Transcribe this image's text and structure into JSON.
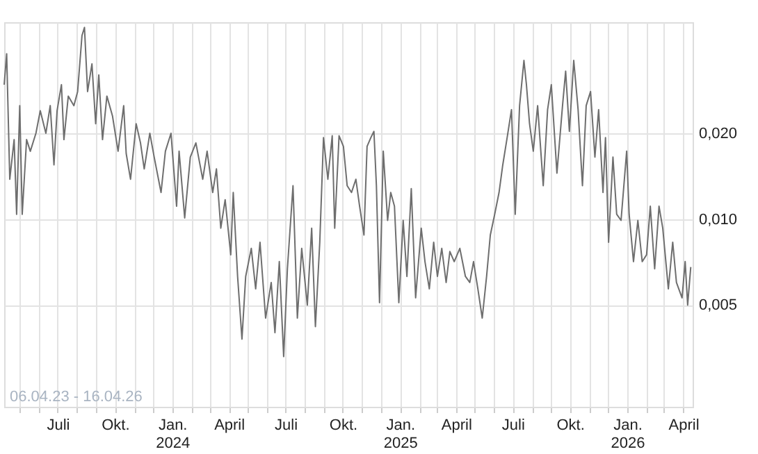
{
  "chart_data": {
    "type": "line",
    "log": "y",
    "grid": true,
    "marker": "none",
    "line_style": "solid",
    "annotations": [
      "06.04.23 - 16.04.26"
    ],
    "xlim": [
      "2023-04-06",
      "2026-04-16"
    ],
    "ylim": [
      0.0022,
      0.049
    ],
    "yticks": [
      {
        "value": 0.005,
        "label": "0,005"
      },
      {
        "value": 0.01,
        "label": "0,010"
      },
      {
        "value": 0.02,
        "label": "0,020"
      }
    ],
    "xticks": [
      {
        "value": "2023-05-01",
        "label": null
      },
      {
        "value": "2023-06-01",
        "label": null
      },
      {
        "value": "2023-07-01",
        "label": "Juli"
      },
      {
        "value": "2023-08-01",
        "label": null
      },
      {
        "value": "2023-09-01",
        "label": null
      },
      {
        "value": "2023-10-01",
        "label": "Okt."
      },
      {
        "value": "2023-11-01",
        "label": null
      },
      {
        "value": "2023-12-01",
        "label": null
      },
      {
        "value": "2024-01-01",
        "label": "Jan.\n2024"
      },
      {
        "value": "2024-02-01",
        "label": null
      },
      {
        "value": "2024-03-01",
        "label": null
      },
      {
        "value": "2024-04-01",
        "label": "April"
      },
      {
        "value": "2024-05-01",
        "label": null
      },
      {
        "value": "2024-06-01",
        "label": null
      },
      {
        "value": "2024-07-01",
        "label": "Juli"
      },
      {
        "value": "2024-08-01",
        "label": null
      },
      {
        "value": "2024-09-01",
        "label": null
      },
      {
        "value": "2024-10-01",
        "label": "Okt."
      },
      {
        "value": "2024-11-01",
        "label": null
      },
      {
        "value": "2024-12-01",
        "label": null
      },
      {
        "value": "2025-01-01",
        "label": "Jan.\n2025"
      },
      {
        "value": "2025-02-01",
        "label": null
      },
      {
        "value": "2025-03-01",
        "label": null
      },
      {
        "value": "2025-04-01",
        "label": "April"
      },
      {
        "value": "2025-05-01",
        "label": null
      },
      {
        "value": "2025-06-01",
        "label": null
      },
      {
        "value": "2025-07-01",
        "label": "Juli"
      },
      {
        "value": "2025-08-01",
        "label": null
      },
      {
        "value": "2025-09-01",
        "label": null
      },
      {
        "value": "2025-10-01",
        "label": "Okt."
      },
      {
        "value": "2025-11-01",
        "label": null
      },
      {
        "value": "2025-12-01",
        "label": null
      },
      {
        "value": "2026-01-01",
        "label": "Jan.\n2026"
      },
      {
        "value": "2026-02-01",
        "label": null
      },
      {
        "value": "2026-03-01",
        "label": null
      },
      {
        "value": "2026-04-01",
        "label": "April"
      }
    ],
    "series": [
      {
        "color": "#6e6e6e",
        "x": [
          "2023-04-06",
          "2023-04-10",
          "2023-04-15",
          "2023-04-22",
          "2023-04-26",
          "2023-05-01",
          "2023-05-05",
          "2023-05-12",
          "2023-05-18",
          "2023-05-27",
          "2023-06-03",
          "2023-06-12",
          "2023-06-19",
          "2023-06-25",
          "2023-06-30",
          "2023-07-07",
          "2023-07-11",
          "2023-07-18",
          "2023-07-27",
          "2023-08-02",
          "2023-08-09",
          "2023-08-13",
          "2023-08-18",
          "2023-08-25",
          "2023-08-31",
          "2023-09-05",
          "2023-09-11",
          "2023-09-18",
          "2023-09-27",
          "2023-10-06",
          "2023-10-15",
          "2023-10-19",
          "2023-10-26",
          "2023-11-04",
          "2023-11-11",
          "2023-11-17",
          "2023-11-26",
          "2023-12-03",
          "2023-12-14",
          "2023-12-21",
          "2023-12-30",
          "2024-01-08",
          "2024-01-12",
          "2024-01-21",
          "2024-01-30",
          "2024-02-08",
          "2024-02-19",
          "2024-02-26",
          "2024-03-06",
          "2024-03-12",
          "2024-03-19",
          "2024-03-26",
          "2024-04-04",
          "2024-04-08",
          "2024-04-15",
          "2024-04-22",
          "2024-04-28",
          "2024-05-07",
          "2024-05-14",
          "2024-05-21",
          "2024-05-30",
          "2024-06-08",
          "2024-06-14",
          "2024-06-21",
          "2024-06-28",
          "2024-07-04",
          "2024-07-13",
          "2024-07-20",
          "2024-07-27",
          "2024-08-05",
          "2024-08-12",
          "2024-08-18",
          "2024-08-25",
          "2024-08-31",
          "2024-09-07",
          "2024-09-14",
          "2024-09-18",
          "2024-09-25",
          "2024-10-02",
          "2024-10-08",
          "2024-10-15",
          "2024-10-22",
          "2024-10-28",
          "2024-11-04",
          "2024-11-09",
          "2024-11-15",
          "2024-11-20",
          "2024-11-24",
          "2024-11-29",
          "2024-12-05",
          "2024-12-12",
          "2024-12-17",
          "2024-12-23",
          "2024-12-30",
          "2025-01-06",
          "2025-01-12",
          "2025-01-19",
          "2025-01-26",
          "2025-02-04",
          "2025-02-10",
          "2025-02-17",
          "2025-02-24",
          "2025-03-02",
          "2025-03-09",
          "2025-03-16",
          "2025-03-22",
          "2025-03-29",
          "2025-04-07",
          "2025-04-16",
          "2025-04-23",
          "2025-04-29",
          "2025-05-06",
          "2025-05-13",
          "2025-05-20",
          "2025-05-26",
          "2025-06-02",
          "2025-06-09",
          "2025-06-15",
          "2025-06-22",
          "2025-06-29",
          "2025-07-05",
          "2025-07-12",
          "2025-07-19",
          "2025-07-23",
          "2025-07-28",
          "2025-08-03",
          "2025-08-10",
          "2025-08-19",
          "2025-08-26",
          "2025-09-01",
          "2025-09-10",
          "2025-09-19",
          "2025-09-24",
          "2025-09-30",
          "2025-10-07",
          "2025-10-14",
          "2025-10-21",
          "2025-10-27",
          "2025-11-03",
          "2025-11-10",
          "2025-11-16",
          "2025-11-23",
          "2025-11-27",
          "2025-12-02",
          "2025-12-09",
          "2025-12-15",
          "2025-12-22",
          "2025-12-31",
          "2026-01-04",
          "2026-01-11",
          "2026-01-18",
          "2026-01-25",
          "2026-02-01",
          "2026-02-07",
          "2026-02-14",
          "2026-02-21",
          "2026-02-27",
          "2026-03-08",
          "2026-03-15",
          "2026-03-21",
          "2026-03-30",
          "2026-04-04",
          "2026-04-08",
          "2026-04-13"
        ],
        "values": [
          0.0296,
          0.038,
          0.0138,
          0.019,
          0.0104,
          0.025,
          0.0104,
          0.019,
          0.0173,
          0.02,
          0.024,
          0.02,
          0.025,
          0.0155,
          0.024,
          0.0296,
          0.019,
          0.027,
          0.025,
          0.028,
          0.044,
          0.047,
          0.028,
          0.035,
          0.0216,
          0.032,
          0.019,
          0.027,
          0.023,
          0.0173,
          0.025,
          0.017,
          0.0138,
          0.0216,
          0.0185,
          0.015,
          0.02,
          0.0165,
          0.0124,
          0.0173,
          0.02,
          0.0111,
          0.0173,
          0.0101,
          0.0165,
          0.0185,
          0.0138,
          0.0173,
          0.0124,
          0.015,
          0.0093,
          0.0117,
          0.0075,
          0.0124,
          0.0063,
          0.0038,
          0.0063,
          0.0079,
          0.0057,
          0.0083,
          0.0045,
          0.006,
          0.004,
          0.0071,
          0.0033,
          0.0067,
          0.0131,
          0.0045,
          0.0079,
          0.005,
          0.0093,
          0.0042,
          0.0083,
          0.0193,
          0.0138,
          0.0196,
          0.0093,
          0.0196,
          0.018,
          0.0131,
          0.0124,
          0.0138,
          0.0111,
          0.0088,
          0.018,
          0.0193,
          0.0203,
          0.0131,
          0.0051,
          0.0173,
          0.0099,
          0.0124,
          0.0111,
          0.0051,
          0.0099,
          0.0063,
          0.0128,
          0.0053,
          0.0093,
          0.0071,
          0.0057,
          0.0083,
          0.0063,
          0.0079,
          0.006,
          0.0077,
          0.0071,
          0.0079,
          0.0063,
          0.006,
          0.0071,
          0.0057,
          0.0045,
          0.0063,
          0.0088,
          0.0104,
          0.0124,
          0.0155,
          0.0193,
          0.0242,
          0.0104,
          0.025,
          0.036,
          0.0296,
          0.0216,
          0.0173,
          0.025,
          0.0131,
          0.0242,
          0.0296,
          0.0145,
          0.025,
          0.033,
          0.0203,
          0.036,
          0.0242,
          0.0131,
          0.025,
          0.028,
          0.0165,
          0.0242,
          0.0124,
          0.0193,
          0.0083,
          0.0165,
          0.0104,
          0.0099,
          0.0173,
          0.0104,
          0.0071,
          0.0099,
          0.0071,
          0.0075,
          0.0111,
          0.0067,
          0.0111,
          0.0093,
          0.0057,
          0.0083,
          0.006,
          0.0053,
          0.0071,
          0.005,
          0.0068
        ]
      }
    ]
  }
}
